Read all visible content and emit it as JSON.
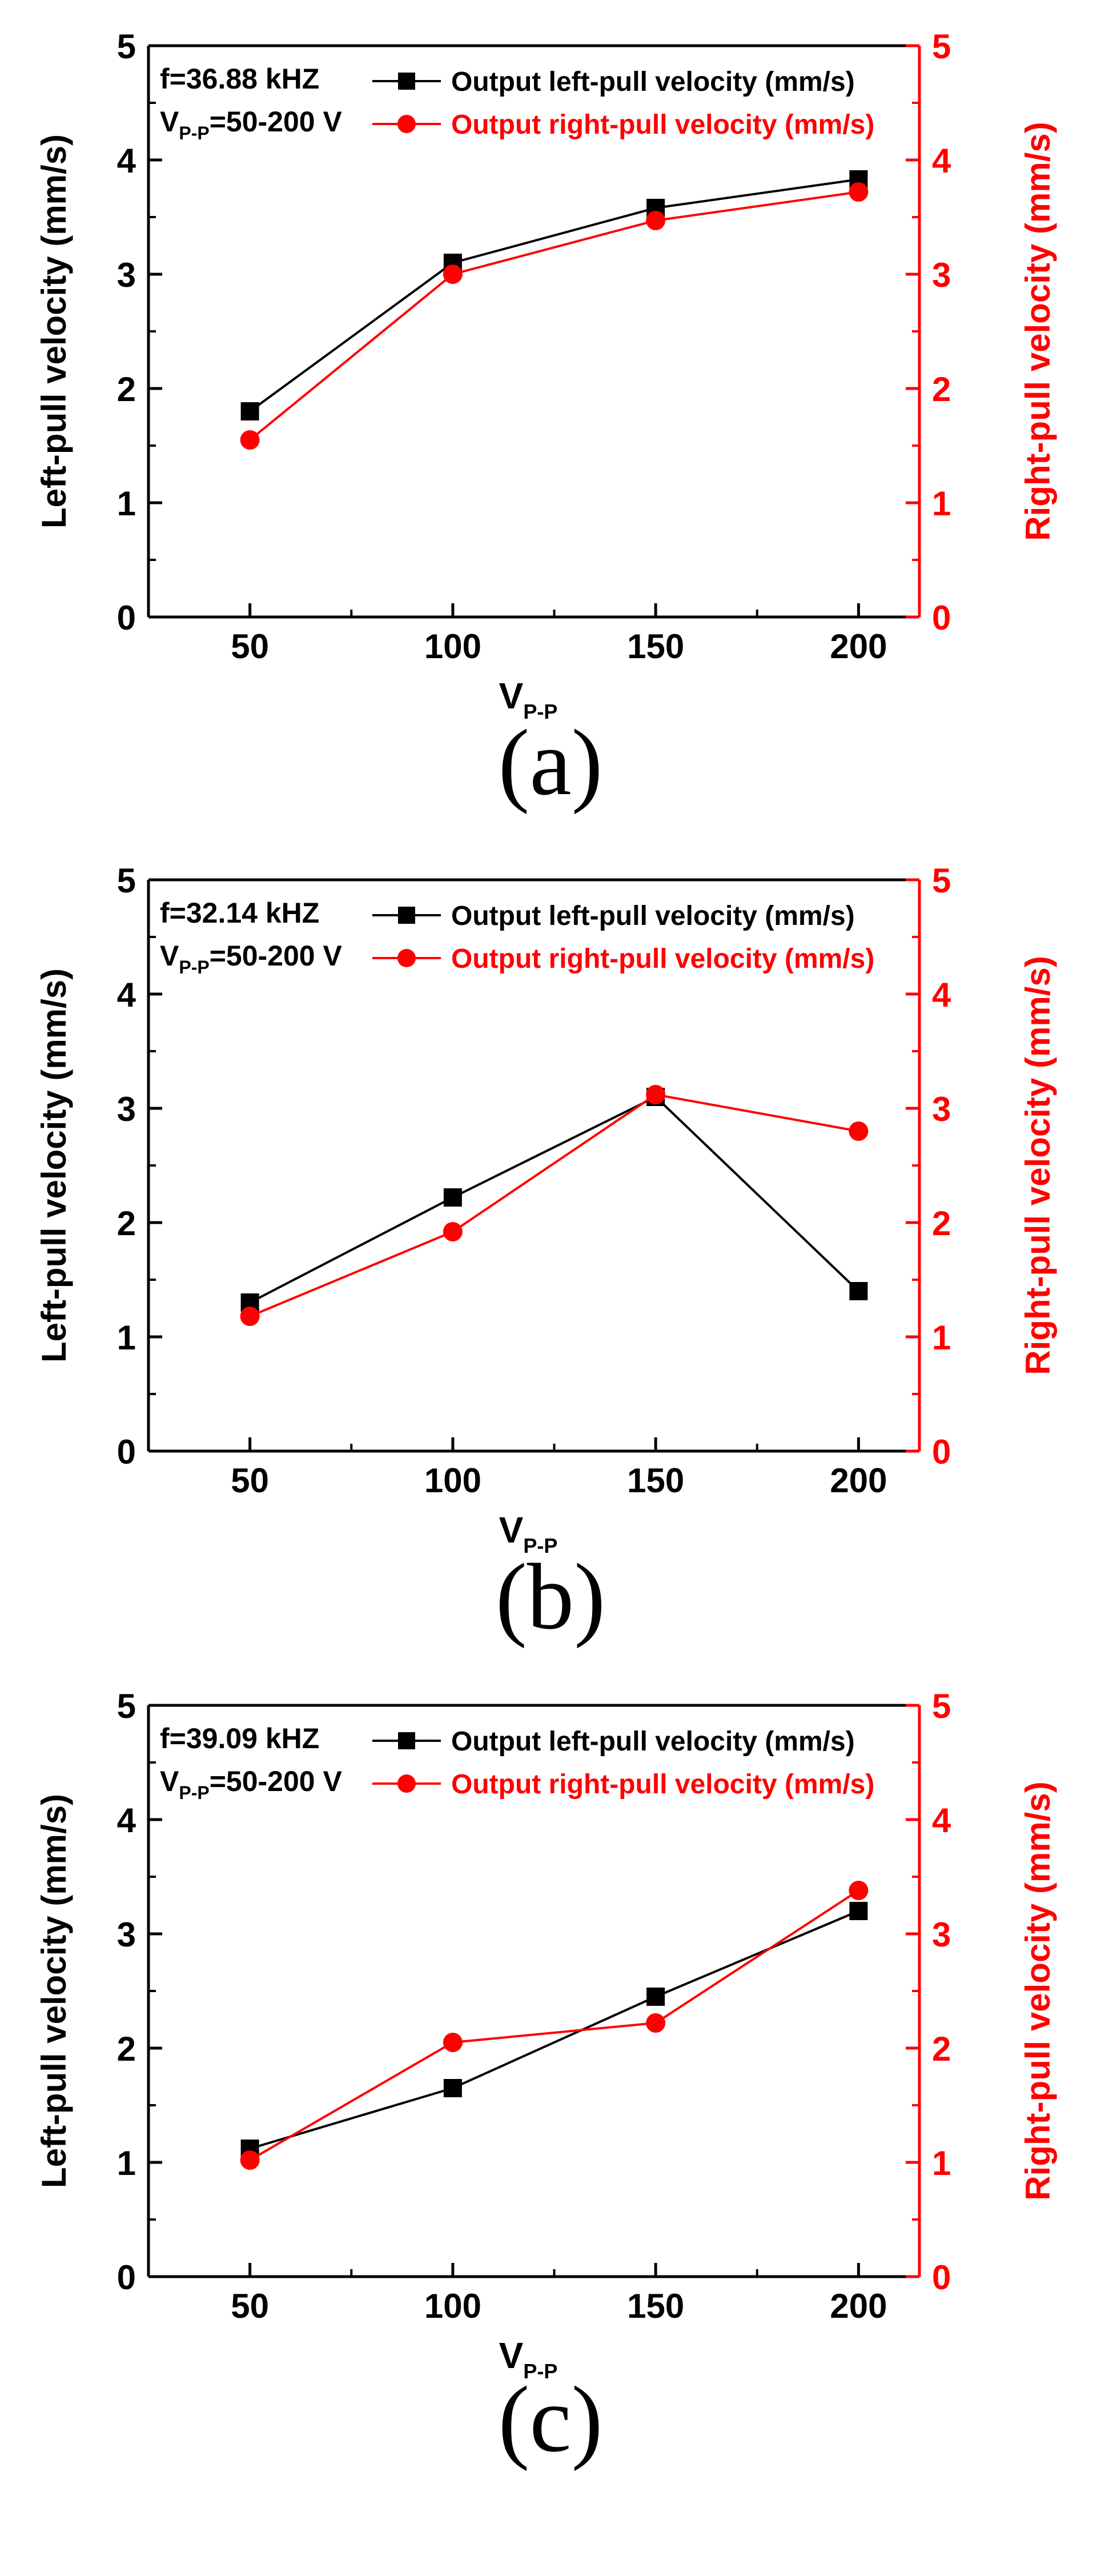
{
  "colors": {
    "axis": "#000000",
    "left_series": "#000000",
    "right_series": "#ff0000"
  },
  "chart_data": [
    {
      "type": "line",
      "caption": "(a)",
      "annotation": {
        "freq": "f=36.88 kHZ",
        "v_main": "V",
        "v_sub": "P-P",
        "v_rest": "=50-200 V"
      },
      "x": [
        50,
        100,
        150,
        200
      ],
      "xticks": [
        "50",
        "100",
        "150",
        "200"
      ],
      "xlim": [
        25,
        215
      ],
      "xlabel": {
        "main": "V",
        "sub": "P-P"
      },
      "ylabel_left": "Left-pull velocity (mm/s)",
      "ylabel_right": "Right-pull velocity (mm/s)",
      "ylim": [
        0,
        5
      ],
      "yticks": [
        "0",
        "1",
        "2",
        "3",
        "4",
        "5"
      ],
      "series": [
        {
          "name": "Output left-pull velocity (mm/s)",
          "axis": "left",
          "marker": "square",
          "color": "#000000",
          "values": [
            1.8,
            3.1,
            3.58,
            3.83
          ]
        },
        {
          "name": "Output right-pull velocity (mm/s)",
          "axis": "right",
          "marker": "circle",
          "color": "#ff0000",
          "values": [
            1.55,
            3.0,
            3.47,
            3.72
          ]
        }
      ]
    },
    {
      "type": "line",
      "caption": "(b)",
      "annotation": {
        "freq": "f=32.14 kHZ",
        "v_main": "V",
        "v_sub": "P-P",
        "v_rest": "=50-200 V"
      },
      "x": [
        50,
        100,
        150,
        200
      ],
      "xticks": [
        "50",
        "100",
        "150",
        "200"
      ],
      "xlim": [
        25,
        215
      ],
      "xlabel": {
        "main": "V",
        "sub": "P-P"
      },
      "ylabel_left": "Left-pull velocity (mm/s)",
      "ylabel_right": "Right-pull velocity (mm/s)",
      "ylim": [
        0,
        5
      ],
      "yticks": [
        "0",
        "1",
        "2",
        "3",
        "4",
        "5"
      ],
      "series": [
        {
          "name": "Output left-pull velocity (mm/s)",
          "axis": "left",
          "marker": "square",
          "color": "#000000",
          "values": [
            1.3,
            2.22,
            3.1,
            1.4
          ]
        },
        {
          "name": "Output right-pull velocity (mm/s)",
          "axis": "right",
          "marker": "circle",
          "color": "#ff0000",
          "values": [
            1.18,
            1.92,
            3.12,
            2.8
          ]
        }
      ]
    },
    {
      "type": "line",
      "caption": "(c)",
      "annotation": {
        "freq": "f=39.09 kHZ",
        "v_main": "V",
        "v_sub": "P-P",
        "v_rest": "=50-200 V"
      },
      "x": [
        50,
        100,
        150,
        200
      ],
      "xticks": [
        "50",
        "100",
        "150",
        "200"
      ],
      "xlim": [
        25,
        215
      ],
      "xlabel": {
        "main": "V",
        "sub": "P-P"
      },
      "ylabel_left": "Left-pull velocity (mm/s)",
      "ylabel_right": "Right-pull velocity (mm/s)",
      "ylim": [
        0,
        5
      ],
      "yticks": [
        "0",
        "1",
        "2",
        "3",
        "4",
        "5"
      ],
      "series": [
        {
          "name": "Output left-pull velocity (mm/s)",
          "axis": "left",
          "marker": "square",
          "color": "#000000",
          "values": [
            1.12,
            1.65,
            2.45,
            3.2
          ]
        },
        {
          "name": "Output right-pull velocity (mm/s)",
          "axis": "right",
          "marker": "circle",
          "color": "#ff0000",
          "values": [
            1.02,
            2.05,
            2.22,
            3.38
          ]
        }
      ]
    }
  ]
}
